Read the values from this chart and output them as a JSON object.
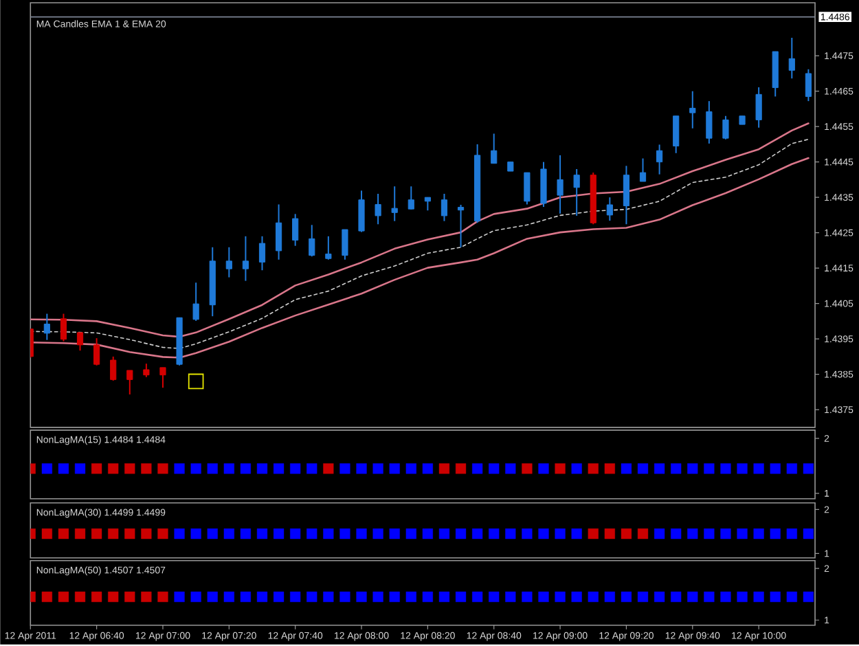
{
  "chart_data": [
    {
      "type": "candlestick",
      "title": "MA Candles  EMA 1  &  EMA 20",
      "x": [
        "2011-04-12T06:20",
        "2011-04-12T06:25",
        "2011-04-12T06:30",
        "2011-04-12T06:35",
        "2011-04-12T06:40",
        "2011-04-12T06:45",
        "2011-04-12T06:50",
        "2011-04-12T06:55",
        "2011-04-12T07:00",
        "2011-04-12T07:05",
        "2011-04-12T07:10",
        "2011-04-12T07:15",
        "2011-04-12T07:20",
        "2011-04-12T07:25",
        "2011-04-12T07:30",
        "2011-04-12T07:35",
        "2011-04-12T07:40",
        "2011-04-12T07:45",
        "2011-04-12T07:50",
        "2011-04-12T07:55",
        "2011-04-12T08:00",
        "2011-04-12T08:05",
        "2011-04-12T08:10",
        "2011-04-12T08:15",
        "2011-04-12T08:20",
        "2011-04-12T08:25",
        "2011-04-12T08:30",
        "2011-04-12T08:35",
        "2011-04-12T08:40",
        "2011-04-12T08:45",
        "2011-04-12T08:50",
        "2011-04-12T08:55",
        "2011-04-12T09:00",
        "2011-04-12T09:05",
        "2011-04-12T09:10",
        "2011-04-12T09:15",
        "2011-04-12T09:20",
        "2011-04-12T09:25",
        "2011-04-12T09:30",
        "2011-04-12T09:35",
        "2011-04-12T09:40",
        "2011-04-12T09:45",
        "2011-04-12T09:50",
        "2011-04-12T09:55",
        "2011-04-12T10:00",
        "2011-04-12T10:05",
        "2011-04-12T10:10",
        "2011-04-12T10:15"
      ],
      "ohlc": [
        [
          1.43978,
          1.43978,
          1.43897,
          1.439
        ],
        [
          1.43966,
          1.44021,
          1.43947,
          1.43992
        ],
        [
          1.44007,
          1.44021,
          1.43943,
          1.43949
        ],
        [
          1.43968,
          1.43968,
          1.43917,
          1.43933
        ],
        [
          1.43933,
          1.43952,
          1.43875,
          1.43878
        ],
        [
          1.4389,
          1.439,
          1.43832,
          1.43835
        ],
        [
          1.43861,
          1.43861,
          1.43793,
          1.43835
        ],
        [
          1.43863,
          1.4388,
          1.43842,
          1.43848
        ],
        [
          1.43869,
          1.43869,
          1.43812,
          1.43848
        ],
        [
          1.43878,
          1.4401,
          1.43875,
          1.4401
        ],
        [
          1.44005,
          1.44109,
          1.44001,
          1.44049
        ],
        [
          1.44046,
          1.44209,
          1.44014,
          1.4417
        ],
        [
          1.44148,
          1.44209,
          1.44124,
          1.4417
        ],
        [
          1.44148,
          1.4424,
          1.44114,
          1.4417
        ],
        [
          1.44167,
          1.4424,
          1.44144,
          1.4422
        ],
        [
          1.44199,
          1.4433,
          1.44174,
          1.44278
        ],
        [
          1.44229,
          1.44303,
          1.44213,
          1.4429
        ],
        [
          1.44186,
          1.44272,
          1.44183,
          1.44233
        ],
        [
          1.44177,
          1.4424,
          1.44174,
          1.4419
        ],
        [
          1.44186,
          1.44259,
          1.44174,
          1.44259
        ],
        [
          1.44255,
          1.44369,
          1.44252,
          1.44343
        ],
        [
          1.44298,
          1.4436,
          1.44274,
          1.4433
        ],
        [
          1.44307,
          1.44381,
          1.44283,
          1.44319
        ],
        [
          1.44317,
          1.44381,
          1.44316,
          1.44343
        ],
        [
          1.44339,
          1.4435,
          1.44313,
          1.4435
        ],
        [
          1.44298,
          1.4436,
          1.44283,
          1.44343
        ],
        [
          1.44314,
          1.44329,
          1.44209,
          1.44322
        ],
        [
          1.44283,
          1.445,
          1.44278,
          1.44469
        ],
        [
          1.44446,
          1.4453,
          1.44446,
          1.44482
        ],
        [
          1.44424,
          1.4445,
          1.44424,
          1.4445
        ],
        [
          1.44339,
          1.4442,
          1.4433,
          1.4442
        ],
        [
          1.44333,
          1.4445,
          1.44323,
          1.4443
        ],
        [
          1.44356,
          1.44469,
          1.44304,
          1.444
        ],
        [
          1.44378,
          1.4443,
          1.44298,
          1.44413
        ],
        [
          1.44413,
          1.4442,
          1.44274,
          1.44278
        ],
        [
          1.443,
          1.4435,
          1.44284,
          1.44329
        ],
        [
          1.44326,
          1.44439,
          1.44274,
          1.44413
        ],
        [
          1.44395,
          1.4446,
          1.44395,
          1.4442
        ],
        [
          1.4445,
          1.44499,
          1.44415,
          1.44482
        ],
        [
          1.44495,
          1.4458,
          1.44475,
          1.4458
        ],
        [
          1.44589,
          1.4465,
          1.44545,
          1.44602
        ],
        [
          1.44517,
          1.44622,
          1.44502,
          1.44592
        ],
        [
          1.44517,
          1.4458,
          1.44514,
          1.44569
        ],
        [
          1.44556,
          1.4458,
          1.44556,
          1.4458
        ],
        [
          1.44569,
          1.44661,
          1.44547,
          1.44641
        ],
        [
          1.4466,
          1.44762,
          1.44635,
          1.44762
        ],
        [
          1.44709,
          1.44801,
          1.44686,
          1.44742
        ],
        [
          1.44635,
          1.44712,
          1.44622,
          1.447
        ]
      ],
      "colors": [
        "#d40000",
        "#1f7ad9",
        "#d40000",
        "#d40000",
        "#d40000",
        "#d40000",
        "#d40000",
        "#d40000",
        "#d40000",
        "#1f7ad9",
        "#1f7ad9",
        "#1f7ad9",
        "#1f7ad9",
        "#1f7ad9",
        "#1f7ad9",
        "#1f7ad9",
        "#1f7ad9",
        "#1f7ad9",
        "#1f7ad9",
        "#1f7ad9",
        "#1f7ad9",
        "#1f7ad9",
        "#1f7ad9",
        "#1f7ad9",
        "#1f7ad9",
        "#1f7ad9",
        "#1f7ad9",
        "#1f7ad9",
        "#1f7ad9",
        "#1f7ad9",
        "#1f7ad9",
        "#1f7ad9",
        "#1f7ad9",
        "#1f7ad9",
        "#d40000",
        "#1f7ad9",
        "#1f7ad9",
        "#1f7ad9",
        "#1f7ad9",
        "#1f7ad9",
        "#1f7ad9",
        "#1f7ad9",
        "#1f7ad9",
        "#1f7ad9",
        "#1f7ad9",
        "#1f7ad9",
        "#1f7ad9",
        "#1f7ad9"
      ],
      "series": [
        {
          "type": "line",
          "color": "#d9768a",
          "x": [
            "2011-04-12T06:20",
            "2011-04-12T06:30",
            "2011-04-12T06:40",
            "2011-04-12T06:50",
            "2011-04-12T07:00",
            "2011-04-12T07:05",
            "2011-04-12T07:10",
            "2011-04-12T07:20",
            "2011-04-12T07:30",
            "2011-04-12T07:40",
            "2011-04-12T07:50",
            "2011-04-12T08:00",
            "2011-04-12T08:10",
            "2011-04-12T08:20",
            "2011-04-12T08:30",
            "2011-04-12T08:35",
            "2011-04-12T08:40",
            "2011-04-12T08:50",
            "2011-04-12T09:00",
            "2011-04-12T09:10",
            "2011-04-12T09:20",
            "2011-04-12T09:30",
            "2011-04-12T09:40",
            "2011-04-12T09:50",
            "2011-04-12T10:00",
            "2011-04-12T10:10",
            "2011-04-12T10:15"
          ],
          "values": [
            1.44005,
            1.44004,
            1.44,
            1.43981,
            1.4396,
            1.43956,
            1.43968,
            1.44006,
            1.44046,
            1.44101,
            1.44132,
            1.44166,
            1.44205,
            1.44231,
            1.44251,
            1.44282,
            1.44303,
            1.44318,
            1.4435,
            1.44361,
            1.44366,
            1.44388,
            1.44424,
            1.44456,
            1.44486,
            1.44539,
            1.44559
          ]
        },
        {
          "type": "line",
          "color": "#d0d0d0",
          "line_style": "dashed",
          "x": [
            "2011-04-12T06:20",
            "2011-04-12T06:30",
            "2011-04-12T06:40",
            "2011-04-12T06:50",
            "2011-04-12T07:00",
            "2011-04-12T07:05",
            "2011-04-12T07:10",
            "2011-04-12T07:20",
            "2011-04-12T07:30",
            "2011-04-12T07:40",
            "2011-04-12T07:50",
            "2011-04-12T08:00",
            "2011-04-12T08:10",
            "2011-04-12T08:20",
            "2011-04-12T08:30",
            "2011-04-12T08:35",
            "2011-04-12T08:40",
            "2011-04-12T08:50",
            "2011-04-12T09:00",
            "2011-04-12T09:10",
            "2011-04-12T09:20",
            "2011-04-12T09:30",
            "2011-04-12T09:40",
            "2011-04-12T09:50",
            "2011-04-12T10:00",
            "2011-04-12T10:10",
            "2011-04-12T10:15"
          ],
          "values": [
            1.43971,
            1.4397,
            1.43967,
            1.43948,
            1.43926,
            1.43923,
            1.43936,
            1.4397,
            1.44008,
            1.44061,
            1.44085,
            1.44128,
            1.44156,
            1.44192,
            1.44209,
            1.44233,
            1.44256,
            1.44272,
            1.44299,
            1.44311,
            1.44316,
            1.44339,
            1.44392,
            1.44407,
            1.44442,
            1.44502,
            1.44514
          ]
        },
        {
          "type": "line",
          "color": "#d9768a",
          "x": [
            "2011-04-12T06:20",
            "2011-04-12T06:30",
            "2011-04-12T06:40",
            "2011-04-12T06:50",
            "2011-04-12T07:00",
            "2011-04-12T07:05",
            "2011-04-12T07:10",
            "2011-04-12T07:20",
            "2011-04-12T07:30",
            "2011-04-12T07:40",
            "2011-04-12T07:50",
            "2011-04-12T08:00",
            "2011-04-12T08:10",
            "2011-04-12T08:20",
            "2011-04-12T08:30",
            "2011-04-12T08:35",
            "2011-04-12T08:40",
            "2011-04-12T08:50",
            "2011-04-12T09:00",
            "2011-04-12T09:10",
            "2011-04-12T09:20",
            "2011-04-12T09:30",
            "2011-04-12T09:40",
            "2011-04-12T09:50",
            "2011-04-12T10:00",
            "2011-04-12T10:10",
            "2011-04-12T10:15"
          ],
          "values": [
            1.4394,
            1.43938,
            1.43934,
            1.43913,
            1.43899,
            1.43897,
            1.4391,
            1.43942,
            1.43981,
            1.44016,
            1.44047,
            1.44078,
            1.44117,
            1.44151,
            1.44166,
            1.44174,
            1.44192,
            1.44233,
            1.44251,
            1.4426,
            1.44264,
            1.44287,
            1.44328,
            1.44362,
            1.44401,
            1.44444,
            1.44461
          ]
        },
        {
          "type": "scatter",
          "color": "#e6e600",
          "marker": "square",
          "x": [
            "2011-04-12T07:10"
          ],
          "values": [
            1.4383
          ]
        }
      ],
      "xlim": [
        "2011-04-12T06:20",
        "2011-04-12T10:17"
      ],
      "ylim": [
        1.437,
        1.449
      ],
      "yticks": [
        1.4375,
        1.4385,
        1.4395,
        1.4405,
        1.4415,
        1.4425,
        1.4435,
        1.4445,
        1.4455,
        1.4465,
        1.4475
      ],
      "ref_lines": [
        {
          "axis": "y",
          "value": 1.4486,
          "label": "1.4486",
          "color": "#7c8494"
        }
      ],
      "tick_labels": "y"
    },
    {
      "type": "scatter",
      "title": "NonLagMA(15) 1.4484 1.4484",
      "x": [
        "2011-04-12T06:20",
        "2011-04-12T06:25",
        "2011-04-12T06:30",
        "2011-04-12T06:35",
        "2011-04-12T06:40",
        "2011-04-12T06:45",
        "2011-04-12T06:50",
        "2011-04-12T06:55",
        "2011-04-12T07:00",
        "2011-04-12T07:05",
        "2011-04-12T07:10",
        "2011-04-12T07:15",
        "2011-04-12T07:20",
        "2011-04-12T07:25",
        "2011-04-12T07:30",
        "2011-04-12T07:35",
        "2011-04-12T07:40",
        "2011-04-12T07:45",
        "2011-04-12T07:50",
        "2011-04-12T07:55",
        "2011-04-12T08:00",
        "2011-04-12T08:05",
        "2011-04-12T08:10",
        "2011-04-12T08:15",
        "2011-04-12T08:20",
        "2011-04-12T08:25",
        "2011-04-12T08:30",
        "2011-04-12T08:35",
        "2011-04-12T08:40",
        "2011-04-12T08:45",
        "2011-04-12T08:50",
        "2011-04-12T08:55",
        "2011-04-12T09:00",
        "2011-04-12T09:05",
        "2011-04-12T09:10",
        "2011-04-12T09:15",
        "2011-04-12T09:20",
        "2011-04-12T09:25",
        "2011-04-12T09:30",
        "2011-04-12T09:35",
        "2011-04-12T09:40",
        "2011-04-12T09:45",
        "2011-04-12T09:50",
        "2011-04-12T09:55",
        "2011-04-12T10:00",
        "2011-04-12T10:05",
        "2011-04-12T10:10",
        "2011-04-12T10:15"
      ],
      "series": [
        {
          "color": "#cc0000",
          "values": [
            1.45,
            null,
            null,
            null,
            1.45,
            1.45,
            1.45,
            1.45,
            1.45,
            null,
            null,
            null,
            null,
            null,
            null,
            null,
            null,
            null,
            1.45,
            null,
            null,
            null,
            null,
            null,
            null,
            1.45,
            1.45,
            null,
            null,
            null,
            1.45,
            null,
            1.45,
            null,
            1.45,
            1.45,
            null,
            null,
            null,
            null,
            null,
            null,
            null,
            null,
            null,
            null,
            null,
            null
          ]
        },
        {
          "color": "#0000ff",
          "values": [
            null,
            1.45,
            1.45,
            1.45,
            null,
            null,
            null,
            null,
            null,
            1.45,
            1.45,
            1.45,
            1.45,
            1.45,
            1.45,
            1.45,
            1.45,
            1.45,
            null,
            1.45,
            1.45,
            1.45,
            1.45,
            1.45,
            1.45,
            null,
            null,
            1.45,
            1.45,
            1.45,
            null,
            1.45,
            null,
            1.45,
            null,
            null,
            1.45,
            1.45,
            1.45,
            1.45,
            1.45,
            1.45,
            1.45,
            1.45,
            1.45,
            1.45,
            1.45,
            1.45
          ]
        }
      ],
      "marker": "square",
      "xlim": [
        "2011-04-12T06:20",
        "2011-04-12T10:17"
      ],
      "ylim": [
        0.9,
        2.15
      ],
      "yticks": [
        1,
        2
      ],
      "tick_labels": "y"
    },
    {
      "type": "scatter",
      "title": "NonLagMA(30) 1.4499 1.4499",
      "x": [
        "2011-04-12T06:20",
        "2011-04-12T06:25",
        "2011-04-12T06:30",
        "2011-04-12T06:35",
        "2011-04-12T06:40",
        "2011-04-12T06:45",
        "2011-04-12T06:50",
        "2011-04-12T06:55",
        "2011-04-12T07:00",
        "2011-04-12T07:05",
        "2011-04-12T07:10",
        "2011-04-12T07:15",
        "2011-04-12T07:20",
        "2011-04-12T07:25",
        "2011-04-12T07:30",
        "2011-04-12T07:35",
        "2011-04-12T07:40",
        "2011-04-12T07:45",
        "2011-04-12T07:50",
        "2011-04-12T07:55",
        "2011-04-12T08:00",
        "2011-04-12T08:05",
        "2011-04-12T08:10",
        "2011-04-12T08:15",
        "2011-04-12T08:20",
        "2011-04-12T08:25",
        "2011-04-12T08:30",
        "2011-04-12T08:35",
        "2011-04-12T08:40",
        "2011-04-12T08:45",
        "2011-04-12T08:50",
        "2011-04-12T08:55",
        "2011-04-12T09:00",
        "2011-04-12T09:05",
        "2011-04-12T09:10",
        "2011-04-12T09:15",
        "2011-04-12T09:20",
        "2011-04-12T09:25",
        "2011-04-12T09:30",
        "2011-04-12T09:35",
        "2011-04-12T09:40",
        "2011-04-12T09:45",
        "2011-04-12T09:50",
        "2011-04-12T09:55",
        "2011-04-12T10:00",
        "2011-04-12T10:05",
        "2011-04-12T10:10",
        "2011-04-12T10:15"
      ],
      "series": [
        {
          "color": "#cc0000",
          "values": [
            1.45,
            1.45,
            1.45,
            1.45,
            1.45,
            1.45,
            1.45,
            1.45,
            1.45,
            null,
            null,
            null,
            null,
            null,
            null,
            null,
            null,
            null,
            null,
            null,
            null,
            null,
            null,
            null,
            null,
            null,
            null,
            null,
            null,
            null,
            null,
            null,
            null,
            null,
            1.45,
            1.45,
            1.45,
            1.45,
            null,
            null,
            null,
            null,
            null,
            null,
            null,
            null,
            null,
            null
          ]
        },
        {
          "color": "#0000ff",
          "values": [
            null,
            null,
            null,
            null,
            null,
            null,
            null,
            null,
            null,
            1.45,
            1.45,
            1.45,
            1.45,
            1.45,
            1.45,
            1.45,
            1.45,
            1.45,
            1.45,
            1.45,
            1.45,
            1.45,
            1.45,
            1.45,
            1.45,
            1.45,
            1.45,
            1.45,
            1.45,
            1.45,
            1.45,
            1.45,
            1.45,
            1.45,
            null,
            null,
            null,
            null,
            1.45,
            1.45,
            1.45,
            1.45,
            1.45,
            1.45,
            1.45,
            1.45,
            1.45,
            1.45
          ]
        }
      ],
      "marker": "square",
      "xlim": [
        "2011-04-12T06:20",
        "2011-04-12T10:17"
      ],
      "ylim": [
        0.9,
        2.15
      ],
      "yticks": [
        1,
        2
      ],
      "tick_labels": "y"
    },
    {
      "type": "scatter",
      "title": "NonLagMA(50) 1.4507 1.4507",
      "x": [
        "2011-04-12T06:20",
        "2011-04-12T06:25",
        "2011-04-12T06:30",
        "2011-04-12T06:35",
        "2011-04-12T06:40",
        "2011-04-12T06:45",
        "2011-04-12T06:50",
        "2011-04-12T06:55",
        "2011-04-12T07:00",
        "2011-04-12T07:05",
        "2011-04-12T07:10",
        "2011-04-12T07:15",
        "2011-04-12T07:20",
        "2011-04-12T07:25",
        "2011-04-12T07:30",
        "2011-04-12T07:35",
        "2011-04-12T07:40",
        "2011-04-12T07:45",
        "2011-04-12T07:50",
        "2011-04-12T07:55",
        "2011-04-12T08:00",
        "2011-04-12T08:05",
        "2011-04-12T08:10",
        "2011-04-12T08:15",
        "2011-04-12T08:20",
        "2011-04-12T08:25",
        "2011-04-12T08:30",
        "2011-04-12T08:35",
        "2011-04-12T08:40",
        "2011-04-12T08:45",
        "2011-04-12T08:50",
        "2011-04-12T08:55",
        "2011-04-12T09:00",
        "2011-04-12T09:05",
        "2011-04-12T09:10",
        "2011-04-12T09:15",
        "2011-04-12T09:20",
        "2011-04-12T09:25",
        "2011-04-12T09:30",
        "2011-04-12T09:35",
        "2011-04-12T09:40",
        "2011-04-12T09:45",
        "2011-04-12T09:50",
        "2011-04-12T09:55",
        "2011-04-12T10:00",
        "2011-04-12T10:05",
        "2011-04-12T10:10",
        "2011-04-12T10:15"
      ],
      "series": [
        {
          "color": "#cc0000",
          "values": [
            1.45,
            1.45,
            1.45,
            1.45,
            1.45,
            1.45,
            1.45,
            1.45,
            1.45,
            null,
            null,
            null,
            null,
            null,
            null,
            null,
            null,
            null,
            null,
            null,
            null,
            null,
            null,
            null,
            null,
            null,
            null,
            null,
            null,
            null,
            null,
            null,
            null,
            null,
            null,
            null,
            null,
            null,
            null,
            null,
            null,
            null,
            null,
            null,
            null,
            null,
            null,
            null
          ]
        },
        {
          "color": "#0000ff",
          "values": [
            null,
            null,
            null,
            null,
            null,
            null,
            null,
            null,
            null,
            1.45,
            1.45,
            1.45,
            1.45,
            1.45,
            1.45,
            1.45,
            1.45,
            1.45,
            1.45,
            1.45,
            1.45,
            1.45,
            1.45,
            1.45,
            1.45,
            1.45,
            1.45,
            1.45,
            1.45,
            1.45,
            1.45,
            1.45,
            1.45,
            1.45,
            1.45,
            1.45,
            1.45,
            1.45,
            1.45,
            1.45,
            1.45,
            1.45,
            1.45,
            1.45,
            1.45,
            1.45,
            1.45,
            1.45
          ]
        }
      ],
      "marker": "square",
      "xlim": [
        "2011-04-12T06:20",
        "2011-04-12T10:17"
      ],
      "ylim": [
        0.9,
        2.15
      ],
      "yticks": [
        1,
        2
      ],
      "xticks": [
        {
          "value": "2011-04-12T06:20",
          "label": "12 Apr 2011"
        },
        {
          "value": "2011-04-12T06:40",
          "label": "12 Apr 06:40"
        },
        {
          "value": "2011-04-12T07:00",
          "label": "12 Apr 07:00"
        },
        {
          "value": "2011-04-12T07:20",
          "label": "12 Apr 07:20"
        },
        {
          "value": "2011-04-12T07:40",
          "label": "12 Apr 07:40"
        },
        {
          "value": "2011-04-12T08:00",
          "label": "12 Apr 08:00"
        },
        {
          "value": "2011-04-12T08:20",
          "label": "12 Apr 08:20"
        },
        {
          "value": "2011-04-12T08:40",
          "label": "12 Apr 08:40"
        },
        {
          "value": "2011-04-12T09:00",
          "label": "12 Apr 09:00"
        },
        {
          "value": "2011-04-12T09:20",
          "label": "12 Apr 09:20"
        },
        {
          "value": "2011-04-12T09:40",
          "label": "12 Apr 09:40"
        },
        {
          "value": "2011-04-12T10:00",
          "label": "12 Apr 10:00"
        }
      ]
    }
  ]
}
